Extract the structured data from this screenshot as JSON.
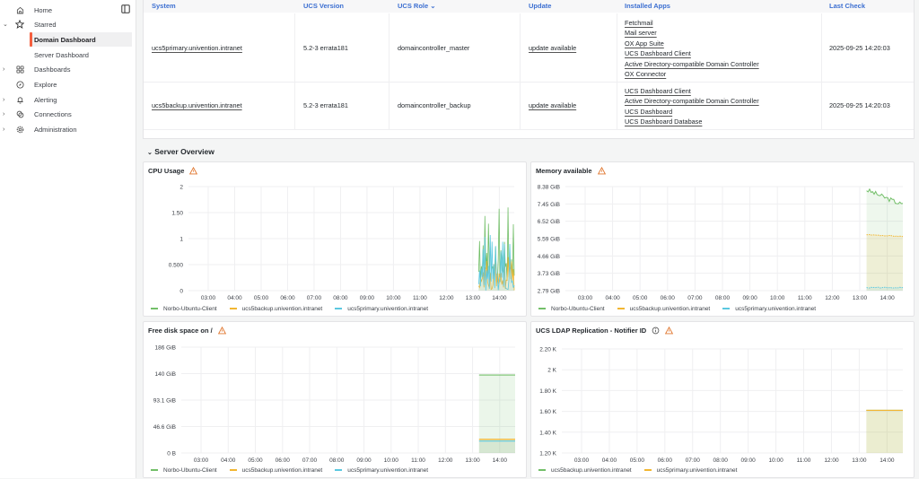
{
  "sidebar": {
    "items": [
      {
        "label": "Home",
        "icon": "home-icon",
        "expandable": false
      },
      {
        "label": "Starred",
        "icon": "star-icon",
        "expandable": true,
        "expanded": true
      },
      {
        "label": "Domain Dashboard",
        "sub": true,
        "active": true
      },
      {
        "label": "Server Dashboard",
        "sub": true
      },
      {
        "label": "Dashboards",
        "icon": "dashboards-grid-icon",
        "expandable": true
      },
      {
        "label": "Explore",
        "icon": "compass-icon",
        "expandable": false
      },
      {
        "label": "Alerting",
        "icon": "bell-icon",
        "expandable": true
      },
      {
        "label": "Connections",
        "icon": "connections-icon",
        "expandable": true
      },
      {
        "label": "Administration",
        "icon": "gear-icon",
        "expandable": true
      }
    ],
    "dock_icon": "dock-panel-icon"
  },
  "table": {
    "headers": [
      "System",
      "UCS Version",
      "UCS Role",
      "Update",
      "Installed Apps",
      "Last Check"
    ],
    "sort_indicator": "UCS Role",
    "rows": [
      {
        "system": "ucs5primary.univention.intranet",
        "version": "5.2-3 errata181",
        "role": "domaincontroller_master",
        "update": "update available",
        "apps": [
          "Fetchmail",
          "Mail server",
          "OX App Suite",
          "UCS Dashboard Client",
          "Active Directory-compatible Domain Controller",
          "OX Connector"
        ],
        "last_check": "2025-09-25 14:20:03"
      },
      {
        "system": "ucs5backup.univention.intranet",
        "version": "5.2-3 errata181",
        "role": "domaincontroller_backup",
        "update": "update available",
        "apps": [
          "UCS Dashboard Client",
          "Active Directory-compatible Domain Controller",
          "UCS Dashboard",
          "UCS Dashboard Database"
        ],
        "last_check": "2025-09-25 14:20:03"
      }
    ]
  },
  "section": {
    "title": "Server Overview"
  },
  "colors": {
    "green": "#73bf69",
    "yellow": "#fade2a",
    "orange": "#f2b632",
    "cyan": "#5bc8e0",
    "link": "#3c6fd1",
    "accent": "#f55f3e",
    "warn": "#e0752d"
  },
  "chart_data": [
    {
      "type": "line",
      "title": "CPU Usage",
      "warning": true,
      "x": [
        "03:00",
        "04:00",
        "05:00",
        "06:00",
        "07:00",
        "08:00",
        "09:00",
        "10:00",
        "11:00",
        "12:00",
        "13:00",
        "14:00"
      ],
      "yticks": [
        "2",
        "1.50",
        "1",
        "0.500",
        "0"
      ],
      "ylim": [
        0,
        2
      ],
      "legend": [
        "Norbo-Ubuntu-Client",
        "ucs5backup.univention.intranet",
        "ucs5primary.univention.intranet"
      ],
      "series": [
        {
          "name": "Norbo-Ubuntu-Client",
          "color": "#73bf69",
          "range": "13:40-14:30",
          "min": 0.1,
          "max": 1.62,
          "typical": 0.8
        },
        {
          "name": "ucs5backup.univention.intranet",
          "color": "#f2b632",
          "range": "13:40-14:30",
          "min": 0.0,
          "max": 0.75,
          "typical": 0.3
        },
        {
          "name": "ucs5primary.univention.intranet",
          "color": "#5bc8e0",
          "range": "13:40-14:30",
          "min": 0.0,
          "max": 1.08,
          "typical": 0.3
        }
      ],
      "grid": true,
      "legend_position": "bottom"
    },
    {
      "type": "line",
      "title": "Memory available",
      "warning": true,
      "x": [
        "03:00",
        "04:00",
        "05:00",
        "06:00",
        "07:00",
        "08:00",
        "09:00",
        "10:00",
        "11:00",
        "12:00",
        "13:00",
        "14:00"
      ],
      "yticks": [
        "8.38 GiB",
        "7.45 GiB",
        "6.52 GiB",
        "5.59 GiB",
        "4.66 GiB",
        "3.73 GiB",
        "2.79 GiB"
      ],
      "ylim": [
        2.79,
        8.38
      ],
      "legend": [
        "Norbo-Ubuntu-Client",
        "ucs5backup.univention.intranet",
        "ucs5primary.univention.intranet"
      ],
      "series": [
        {
          "name": "Norbo-Ubuntu-Client",
          "color": "#73bf69",
          "range": "13:40-14:30",
          "start": 8.2,
          "end": 7.4
        },
        {
          "name": "ucs5backup.univention.intranet",
          "color": "#f2b632",
          "range": "13:40-14:30",
          "start": 5.8,
          "end": 5.7
        },
        {
          "name": "ucs5primary.univention.intranet",
          "color": "#5bc8e0",
          "range": "13:40-14:30",
          "start": 2.95,
          "end": 2.95
        }
      ],
      "grid": true,
      "legend_position": "bottom"
    },
    {
      "type": "area",
      "title": "Free disk space on /",
      "warning": true,
      "x": [
        "03:00",
        "04:00",
        "05:00",
        "06:00",
        "07:00",
        "08:00",
        "09:00",
        "10:00",
        "11:00",
        "12:00",
        "13:00",
        "14:00"
      ],
      "yticks": [
        "186 GiB",
        "140 GiB",
        "93.1 GiB",
        "46.6 GiB",
        "0 B"
      ],
      "ylim": [
        0,
        186
      ],
      "legend": [
        "Norbo-Ubuntu-Client",
        "ucs5backup.univention.intranet",
        "ucs5primary.univention.intranet"
      ],
      "series": [
        {
          "name": "Norbo-Ubuntu-Client",
          "color": "#73bf69",
          "range": "13:40-14:30",
          "value": 137
        },
        {
          "name": "ucs5backup.univention.intranet",
          "color": "#f2b632",
          "range": "13:40-14:30",
          "value": 24
        },
        {
          "name": "ucs5primary.univention.intranet",
          "color": "#5bc8e0",
          "range": "13:40-14:30",
          "value": 21
        }
      ],
      "grid": true,
      "legend_position": "bottom"
    },
    {
      "type": "area",
      "title": "UCS LDAP Replication - Notifier ID",
      "warning": true,
      "info": true,
      "x": [
        "03:00",
        "04:00",
        "05:00",
        "06:00",
        "07:00",
        "08:00",
        "09:00",
        "10:00",
        "11:00",
        "12:00",
        "13:00",
        "14:00"
      ],
      "yticks": [
        "2.20 K",
        "2 K",
        "1.80 K",
        "1.60 K",
        "1.40 K",
        "1.20 K"
      ],
      "ylim": [
        1200,
        2200
      ],
      "legend": [
        "ucs5backup.univention.intranet",
        "ucs5primary.univention.intranet"
      ],
      "series": [
        {
          "name": "ucs5backup.univention.intranet",
          "color": "#73bf69",
          "range": "13:40-14:30",
          "value": 1610
        },
        {
          "name": "ucs5primary.univention.intranet",
          "color": "#f2b632",
          "range": "13:40-14:30",
          "value": 1610
        }
      ],
      "grid": true,
      "legend_position": "bottom"
    }
  ]
}
